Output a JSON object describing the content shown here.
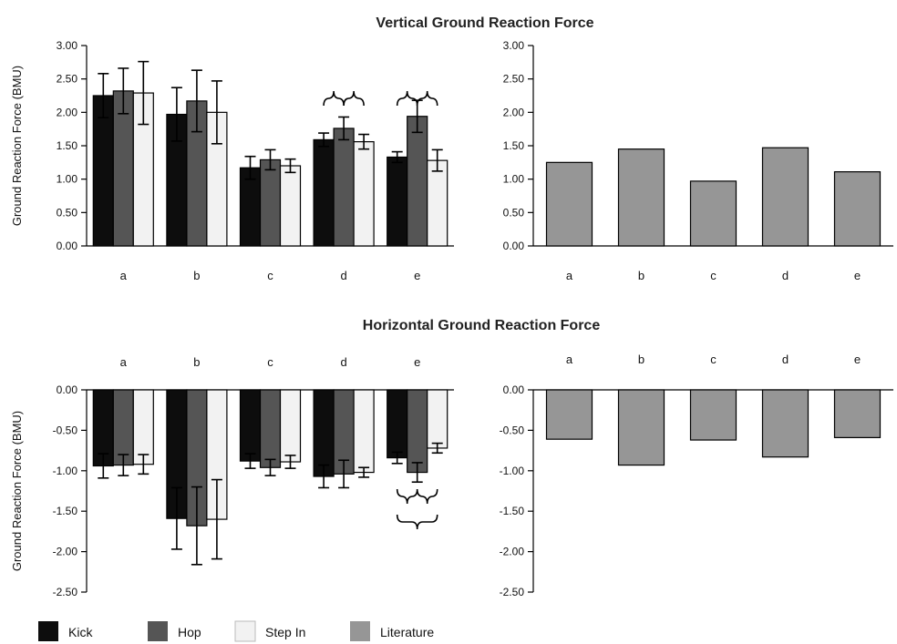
{
  "titles": {
    "vertical": "Vertical Ground Reaction Force",
    "horizontal": "Horizontal Ground Reaction Force"
  },
  "colors": {
    "Kick": "#0d0d0d",
    "Hop": "#555555",
    "Step In": "#f2f2f2",
    "Literature": "#969696"
  },
  "legend": [
    "Kick",
    "Hop",
    "Step In",
    "Literature"
  ],
  "chart_data": [
    {
      "type": "bar",
      "panel": "vertical-experimental",
      "categories": [
        "a",
        "b",
        "c",
        "d",
        "e"
      ],
      "ylabel": "Ground Reaction Force (BMU)",
      "ylim": [
        0,
        3
      ],
      "yticks": [
        "0.00",
        "0.50",
        "1.00",
        "1.50",
        "2.00",
        "2.50",
        "3.00"
      ],
      "series": [
        {
          "name": "Kick",
          "values": [
            2.25,
            1.97,
            1.17,
            1.59,
            1.33
          ],
          "errors": [
            0.33,
            0.4,
            0.17,
            0.1,
            0.08
          ]
        },
        {
          "name": "Hop",
          "values": [
            2.32,
            2.17,
            1.29,
            1.76,
            1.94
          ],
          "errors": [
            0.34,
            0.46,
            0.15,
            0.17,
            0.24
          ]
        },
        {
          "name": "Step In",
          "values": [
            2.29,
            2.0,
            1.2,
            1.56,
            1.28
          ],
          "errors": [
            0.47,
            0.47,
            0.1,
            0.11,
            0.16
          ]
        }
      ],
      "annotations": [
        "brace-d",
        "brace-e"
      ]
    },
    {
      "type": "bar",
      "panel": "vertical-literature",
      "categories": [
        "a",
        "b",
        "c",
        "d",
        "e"
      ],
      "ylim": [
        0,
        3
      ],
      "yticks": [
        "0.00",
        "0.50",
        "1.00",
        "1.50",
        "2.00",
        "2.50",
        "3.00"
      ],
      "series": [
        {
          "name": "Literature",
          "values": [
            1.25,
            1.45,
            0.97,
            1.47,
            1.11
          ]
        }
      ]
    },
    {
      "type": "bar",
      "panel": "horizontal-experimental",
      "categories": [
        "a",
        "b",
        "c",
        "d",
        "e"
      ],
      "ylabel": "Ground Reaction Force (BMU)",
      "ylim": [
        -2.5,
        0
      ],
      "yticks": [
        "0.00",
        "-0.50",
        "-1.00",
        "-1.50",
        "-2.00",
        "-2.50"
      ],
      "series": [
        {
          "name": "Kick",
          "values": [
            -0.94,
            -1.59,
            -0.88,
            -1.07,
            -0.84
          ],
          "errors": [
            0.15,
            0.38,
            0.09,
            0.14,
            0.07
          ]
        },
        {
          "name": "Hop",
          "values": [
            -0.93,
            -1.68,
            -0.96,
            -1.04,
            -1.02
          ],
          "errors": [
            0.13,
            0.48,
            0.1,
            0.17,
            0.12
          ]
        },
        {
          "name": "Step In",
          "values": [
            -0.92,
            -1.6,
            -0.89,
            -1.02,
            -0.72
          ],
          "errors": [
            0.12,
            0.49,
            0.08,
            0.06,
            0.06
          ]
        }
      ],
      "annotations": [
        "brace-e-lower"
      ]
    },
    {
      "type": "bar",
      "panel": "horizontal-literature",
      "categories": [
        "a",
        "b",
        "c",
        "d",
        "e"
      ],
      "ylim": [
        -2.5,
        0
      ],
      "yticks": [
        "0.00",
        "-0.50",
        "-1.00",
        "-1.50",
        "-2.00",
        "-2.50"
      ],
      "series": [
        {
          "name": "Literature",
          "values": [
            -0.61,
            -0.93,
            -0.62,
            -0.83,
            -0.59
          ]
        }
      ]
    }
  ]
}
